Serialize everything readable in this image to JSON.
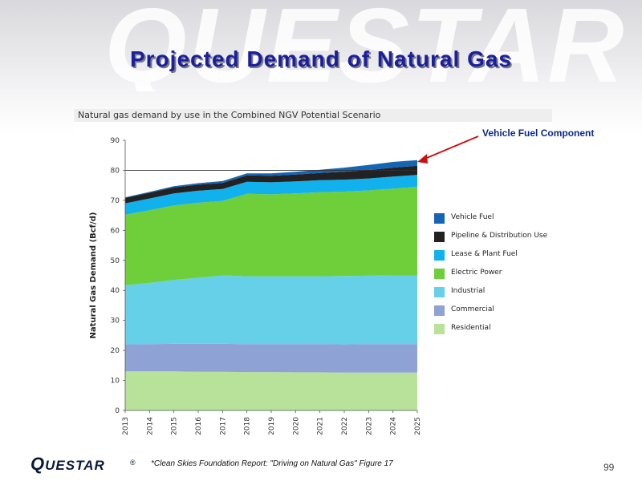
{
  "slide": {
    "title": "Projected Demand of Natural Gas",
    "watermark": "QUESTAR",
    "page_number": "99"
  },
  "callout": {
    "label": "Vehicle Fuel Component",
    "arrow_color": "#cc1111"
  },
  "footer": {
    "logo_first": "Q",
    "logo_rest": "UESTAR",
    "logo_mark": "®",
    "source": "*Clean Skies Foundation Report: \"Driving on Natural Gas\" Figure 17"
  },
  "chart_data": {
    "type": "area",
    "stacked": true,
    "title": "Natural gas demand by use in the Combined NGV Potential Scenario",
    "xlabel": "",
    "ylabel": "Natural Gas Demand (Bcf/d)",
    "ylim": [
      0,
      90
    ],
    "yticks": [
      0,
      10,
      20,
      30,
      40,
      50,
      60,
      70,
      80,
      90
    ],
    "x": [
      "2013",
      "2014",
      "2015",
      "2016",
      "2017",
      "2018",
      "2019",
      "2020",
      "2021",
      "2022",
      "2023",
      "2024",
      "2025"
    ],
    "reference_line": 80,
    "grid": false,
    "legend_placement": "right",
    "series": [
      {
        "name": "Residential",
        "color": "#b8e29a",
        "values": [
          13.0,
          13.0,
          13.0,
          12.9,
          12.9,
          12.8,
          12.8,
          12.7,
          12.7,
          12.6,
          12.6,
          12.6,
          12.6
        ]
      },
      {
        "name": "Commercial",
        "color": "#8ea2d6",
        "values": [
          9.0,
          9.1,
          9.2,
          9.3,
          9.3,
          9.3,
          9.3,
          9.4,
          9.4,
          9.4,
          9.5,
          9.5,
          9.5
        ]
      },
      {
        "name": "Industrial",
        "color": "#66d0e8",
        "values": [
          19.7,
          20.4,
          21.3,
          22.0,
          22.8,
          22.6,
          22.6,
          22.6,
          22.6,
          22.8,
          22.8,
          22.9,
          22.9
        ]
      },
      {
        "name": "Electric Power",
        "color": "#6ecf3a",
        "values": [
          23.5,
          24.2,
          24.8,
          25.0,
          24.8,
          27.5,
          27.3,
          27.6,
          28.0,
          28.1,
          28.4,
          28.9,
          29.5
        ]
      },
      {
        "name": "Lease & Plant Fuel",
        "color": "#11b1ee",
        "values": [
          3.8,
          3.9,
          4.0,
          4.0,
          4.0,
          4.0,
          4.0,
          4.0,
          4.0,
          4.0,
          4.0,
          4.0,
          4.0
        ]
      },
      {
        "name": "Pipeline & Distribution Use",
        "color": "#222222",
        "values": [
          1.8,
          1.9,
          2.0,
          2.0,
          2.0,
          2.1,
          2.2,
          2.3,
          2.4,
          2.6,
          2.8,
          3.0,
          3.0
        ]
      },
      {
        "name": "Vehicle Fuel",
        "color": "#1565b5",
        "values": [
          0.2,
          0.3,
          0.4,
          0.5,
          0.6,
          0.7,
          0.8,
          0.9,
          1.1,
          1.4,
          1.7,
          1.9,
          1.9
        ]
      }
    ]
  }
}
